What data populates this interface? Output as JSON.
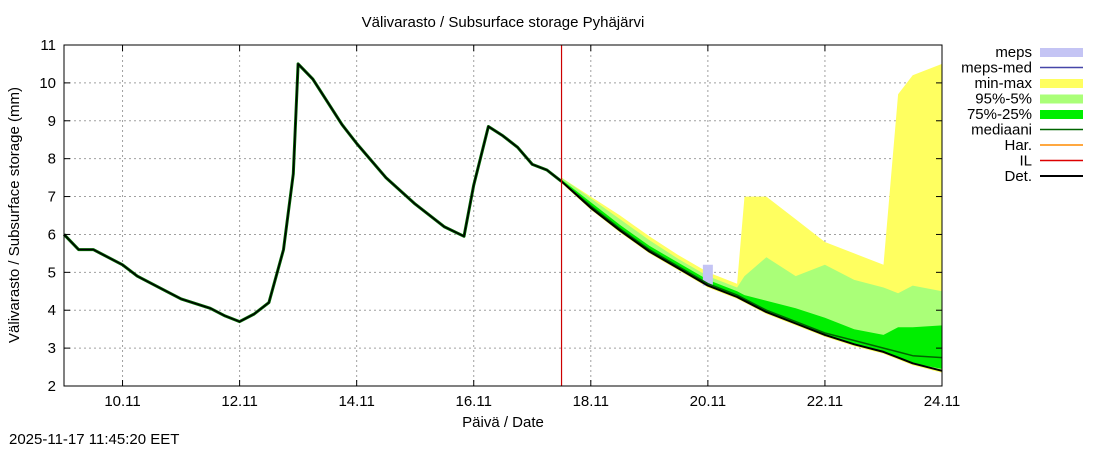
{
  "chart_data": {
    "type": "area",
    "title": "Välivarasto / Subsurface storage  Pyhäjärvi",
    "xlabel": "Päivä / Date",
    "ylabel": "Välivarasto / Subsurface storage (mm)",
    "x_start": "2025-11-09T00:00",
    "x_end": "2025-11-24T00:00",
    "xticks": [
      {
        "x": "2025-11-10",
        "label": "10.11"
      },
      {
        "x": "2025-11-12",
        "label": "12.11"
      },
      {
        "x": "2025-11-14",
        "label": "14.11"
      },
      {
        "x": "2025-11-16",
        "label": "16.11"
      },
      {
        "x": "2025-11-18",
        "label": "18.11"
      },
      {
        "x": "2025-11-20",
        "label": "20.11"
      },
      {
        "x": "2025-11-22",
        "label": "22.11"
      },
      {
        "x": "2025-11-24",
        "label": "24.11"
      }
    ],
    "ylim": [
      2,
      11
    ],
    "yticks": [
      2,
      3,
      4,
      5,
      6,
      7,
      8,
      9,
      10,
      11
    ],
    "grid": true,
    "legend_position": "right",
    "forecast_start": "2025-11-17T12:00",
    "colors": {
      "meps": "#c4c4f4",
      "meps_med": "#4646a8",
      "min_max": "#ffff60",
      "p95_5": "#aaff78",
      "p75_25": "#00ee00",
      "median": "#006400",
      "har": "#ff8c00",
      "il": "#dd0000",
      "det": "#000000",
      "forecast_line": "#cc0000",
      "grid": "#a0a0a0"
    },
    "legend": [
      {
        "key": "meps",
        "label": "meps",
        "kind": "box"
      },
      {
        "key": "meps_med",
        "label": "meps-med",
        "kind": "line"
      },
      {
        "key": "min_max",
        "label": "min-max",
        "kind": "box"
      },
      {
        "key": "p95_5",
        "label": "95%-5%",
        "kind": "box"
      },
      {
        "key": "p75_25",
        "label": "75%-25%",
        "kind": "box"
      },
      {
        "key": "median",
        "label": "mediaani",
        "kind": "line"
      },
      {
        "key": "har",
        "label": "Har.",
        "kind": "line"
      },
      {
        "key": "il",
        "label": "IL",
        "kind": "line"
      },
      {
        "key": "det",
        "label": "Det.",
        "kind": "line"
      }
    ],
    "observed": {
      "x": [
        "2025-11-09T00:00",
        "2025-11-09T06:00",
        "2025-11-09T12:00",
        "2025-11-09T18:00",
        "2025-11-10T00:00",
        "2025-11-10T06:00",
        "2025-11-10T12:00",
        "2025-11-10T18:00",
        "2025-11-11T00:00",
        "2025-11-11T12:00",
        "2025-11-11T18:00",
        "2025-11-12T00:00",
        "2025-11-12T06:00",
        "2025-11-12T12:00",
        "2025-11-12T18:00",
        "2025-11-12T22:00",
        "2025-11-13T00:00",
        "2025-11-13T06:00",
        "2025-11-13T12:00",
        "2025-11-13T18:00",
        "2025-11-14T00:00",
        "2025-11-14T12:00",
        "2025-11-15T00:00",
        "2025-11-15T12:00",
        "2025-11-15T20:00",
        "2025-11-16T00:00",
        "2025-11-16T06:00",
        "2025-11-16T12:00",
        "2025-11-16T18:00",
        "2025-11-17T00:00",
        "2025-11-17T06:00",
        "2025-11-17T12:00"
      ],
      "y": [
        6.0,
        5.6,
        5.6,
        5.4,
        5.2,
        4.9,
        4.7,
        4.5,
        4.3,
        4.05,
        3.85,
        3.7,
        3.9,
        4.2,
        5.6,
        7.6,
        10.5,
        10.1,
        9.5,
        8.9,
        8.4,
        7.5,
        6.8,
        6.2,
        5.95,
        7.3,
        8.85,
        8.6,
        8.3,
        7.85,
        7.7,
        7.4
      ]
    },
    "forecast": {
      "x": [
        "2025-11-17T12:00",
        "2025-11-18T00:00",
        "2025-11-18T12:00",
        "2025-11-19T00:00",
        "2025-11-19T12:00",
        "2025-11-20T00:00",
        "2025-11-20T12:00",
        "2025-11-20T15:00",
        "2025-11-21T00:00",
        "2025-11-21T12:00",
        "2025-11-22T00:00",
        "2025-11-22T12:00",
        "2025-11-23T00:00",
        "2025-11-23T06:00",
        "2025-11-23T12:00",
        "2025-11-24T00:00"
      ],
      "det": [
        7.4,
        6.7,
        6.1,
        5.55,
        5.1,
        4.65,
        4.35,
        4.25,
        3.95,
        3.65,
        3.35,
        3.1,
        2.9,
        2.75,
        2.6,
        2.4
      ],
      "median": [
        7.4,
        6.75,
        6.15,
        5.6,
        5.15,
        4.7,
        4.4,
        4.3,
        4.0,
        3.7,
        3.4,
        3.2,
        3.0,
        2.9,
        2.8,
        2.75
      ],
      "p25": [
        7.4,
        6.7,
        6.1,
        5.55,
        5.1,
        4.65,
        4.35,
        4.25,
        3.95,
        3.65,
        3.35,
        3.1,
        2.9,
        2.75,
        2.6,
        2.45
      ],
      "p75": [
        7.45,
        6.85,
        6.25,
        5.7,
        5.25,
        4.8,
        4.5,
        4.4,
        4.25,
        4.05,
        3.8,
        3.5,
        3.35,
        3.55,
        3.55,
        3.6
      ],
      "p5": [
        7.4,
        6.7,
        6.1,
        5.55,
        5.1,
        4.65,
        4.35,
        4.25,
        3.95,
        3.65,
        3.35,
        3.1,
        2.9,
        2.75,
        2.6,
        2.4
      ],
      "p95": [
        7.5,
        6.95,
        6.4,
        5.85,
        5.35,
        4.9,
        4.6,
        4.9,
        5.4,
        4.9,
        5.2,
        4.8,
        4.6,
        4.45,
        4.65,
        4.5
      ],
      "min": [
        7.35,
        6.65,
        6.05,
        5.5,
        5.05,
        4.6,
        4.3,
        4.2,
        3.9,
        3.6,
        3.3,
        3.05,
        2.85,
        2.7,
        2.55,
        2.35
      ],
      "max": [
        7.5,
        7.0,
        6.5,
        5.95,
        5.45,
        5.0,
        4.7,
        7.0,
        7.0,
        6.4,
        5.8,
        5.5,
        5.2,
        9.7,
        10.2,
        10.5
      ],
      "meps_min": [
        null,
        null,
        null,
        null,
        null,
        4.65,
        null,
        null,
        null,
        null,
        null,
        null,
        null,
        null,
        null,
        null
      ],
      "meps_max": [
        null,
        null,
        null,
        null,
        null,
        5.2,
        null,
        null,
        null,
        null,
        null,
        null,
        null,
        null,
        null,
        null
      ]
    }
  },
  "footer": {
    "timestamp": "2025-11-17 11:45:20 EET"
  }
}
